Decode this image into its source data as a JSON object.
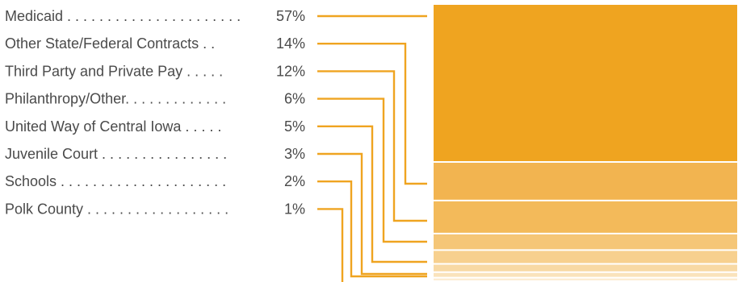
{
  "chart_data": {
    "type": "bar",
    "orientation": "stacked-vertical",
    "categories": [
      "Medicaid",
      "Other State/Federal Contracts",
      "Third Party and Private Pay",
      "Philanthropy/Other",
      "United Way of Central Iowa",
      "Juvenile Court",
      "Schools",
      "Polk County"
    ],
    "values": [
      57,
      14,
      12,
      6,
      5,
      3,
      2,
      1
    ],
    "value_labels": [
      "57%",
      "14%",
      "12%",
      "6%",
      "5%",
      "3%",
      "2%",
      "1%"
    ],
    "leaders": [
      "Medicaid . . . . . . . . . . . . . . . . . . . . . .",
      "Other State/Federal Contracts . .",
      "Third Party and Private Pay . . . . .",
      "Philanthropy/Other. . . . . . . . . . . . .",
      "United Way of Central Iowa . . . . .",
      "Juvenile Court . . . . . . . . . . . . . . . .",
      "Schools . . . . . . . . . . . . . . . . . . . . .",
      "Polk County . . . . . . . . . . . . . . . . . ."
    ],
    "colors": [
      "#EFA420",
      "#F2B450",
      "#F3BA5A",
      "#F5C677",
      "#F7D08E",
      "#F8D9A4",
      "#FAE3BC",
      "#FCEDD3"
    ],
    "connector_color": "#EFA420",
    "title": "",
    "xlabel": "",
    "ylabel": ""
  }
}
